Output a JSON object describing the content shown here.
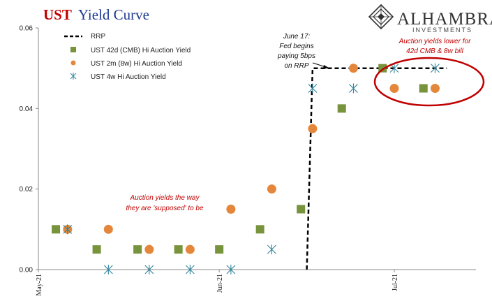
{
  "title": {
    "prefix": "UST",
    "rest": "Yield Curve"
  },
  "logo": {
    "name": "ALHAMBRA",
    "sub": "INVESTMENTS"
  },
  "colors": {
    "rrp": "#000000",
    "cmb42": "#77933c",
    "m2": "#e4873a",
    "w4": "#31859c",
    "annotation": "#c00000",
    "title_prefix": "#c00000",
    "title_rest": "#1f3a93"
  },
  "chart_data": {
    "type": "scatter",
    "title": "UST Yield Curve",
    "xlabel": "",
    "ylabel": "",
    "ylim": [
      0,
      0.06
    ],
    "y_ticks": [
      "0.00",
      "0.02",
      "0.04",
      "0.06"
    ],
    "x_range": [
      "2021-05-01",
      "2021-07-15"
    ],
    "x_ticks": [
      {
        "date": "2021-05-01",
        "label": "May-21"
      },
      {
        "date": "2021-06-01",
        "label": "Jun-21"
      },
      {
        "date": "2021-07-01",
        "label": "Jul-21"
      }
    ],
    "grid": false,
    "legend_position": "top-left",
    "series": [
      {
        "name": "RRP",
        "kind": "line",
        "values": [
          {
            "x": "2021-06-16",
            "y": 0.0
          },
          {
            "x": "2021-06-17",
            "y": 0.05
          },
          {
            "x": "2021-07-10",
            "y": 0.05
          }
        ]
      },
      {
        "name": "UST 42d (CMB) Hi Auction Yield",
        "kind": "square",
        "values": [
          {
            "x": "2021-05-04",
            "y": 0.01
          },
          {
            "x": "2021-05-11",
            "y": 0.005
          },
          {
            "x": "2021-05-18",
            "y": 0.005
          },
          {
            "x": "2021-05-25",
            "y": 0.005
          },
          {
            "x": "2021-06-01",
            "y": 0.005
          },
          {
            "x": "2021-06-08",
            "y": 0.01
          },
          {
            "x": "2021-06-15",
            "y": 0.015
          },
          {
            "x": "2021-06-22",
            "y": 0.04
          },
          {
            "x": "2021-06-29",
            "y": 0.05
          },
          {
            "x": "2021-07-06",
            "y": 0.045
          }
        ]
      },
      {
        "name": "UST 2m (8w) Hi Auction Yield",
        "kind": "circle",
        "values": [
          {
            "x": "2021-05-06",
            "y": 0.01
          },
          {
            "x": "2021-05-13",
            "y": 0.01
          },
          {
            "x": "2021-05-20",
            "y": 0.005
          },
          {
            "x": "2021-05-27",
            "y": 0.005
          },
          {
            "x": "2021-06-03",
            "y": 0.015
          },
          {
            "x": "2021-06-10",
            "y": 0.02
          },
          {
            "x": "2021-06-17",
            "y": 0.035
          },
          {
            "x": "2021-06-24",
            "y": 0.05
          },
          {
            "x": "2021-07-01",
            "y": 0.045
          },
          {
            "x": "2021-07-08",
            "y": 0.045
          }
        ]
      },
      {
        "name": "UST 4w Hi Auction Yield",
        "kind": "asterisk",
        "values": [
          {
            "x": "2021-05-06",
            "y": 0.01
          },
          {
            "x": "2021-05-13",
            "y": 0.0
          },
          {
            "x": "2021-05-20",
            "y": 0.0
          },
          {
            "x": "2021-05-27",
            "y": 0.0
          },
          {
            "x": "2021-06-03",
            "y": 0.0
          },
          {
            "x": "2021-06-10",
            "y": 0.005
          },
          {
            "x": "2021-06-17",
            "y": 0.045
          },
          {
            "x": "2021-06-24",
            "y": 0.045
          },
          {
            "x": "2021-07-01",
            "y": 0.05
          },
          {
            "x": "2021-07-08",
            "y": 0.05
          }
        ]
      }
    ],
    "annotations": [
      {
        "id": "fed",
        "lines": [
          "June 17:",
          "Fed begins",
          "paying 5bps",
          "on RRP"
        ]
      },
      {
        "id": "supposed",
        "lines": [
          "Auction yields the way",
          "they are 'supposed' to be"
        ]
      },
      {
        "id": "lower",
        "lines": [
          "Auction yields lower for",
          "42d CMB & 8w bill"
        ]
      }
    ]
  }
}
